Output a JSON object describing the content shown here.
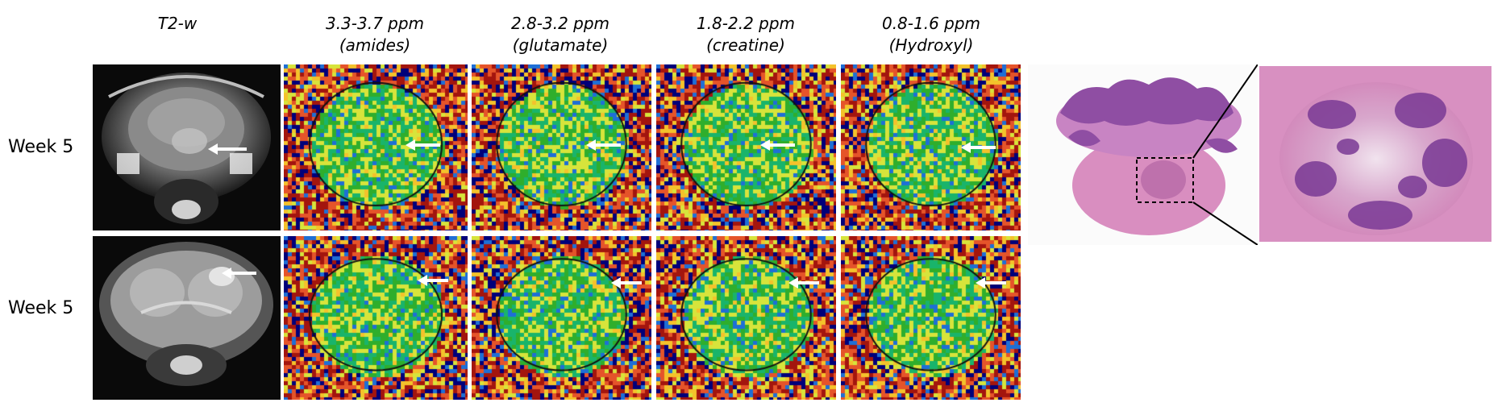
{
  "figure": {
    "columns": [
      {
        "line1": "T2-w",
        "line2": ""
      },
      {
        "line1": "3.3-3.7 ppm",
        "line2": "(amides)"
      },
      {
        "line1": "2.8-3.2 ppm",
        "line2": "(glutamate)"
      },
      {
        "line1": "1.8-2.2 ppm",
        "line2": "(creatine)"
      },
      {
        "line1": "0.8-1.6 ppm",
        "line2": "(Hydroxyl)"
      }
    ],
    "rows": [
      {
        "label": "Week 5"
      },
      {
        "label": "Week 5"
      }
    ]
  },
  "colors": {
    "colormap": [
      "#00007a",
      "#1e6fd6",
      "#19b46b",
      "#2fae2c",
      "#d7e43b",
      "#f4c22b",
      "#e5542a",
      "#a3150e"
    ],
    "he_pink": "#d58fbf",
    "he_purple": "#7d3d92"
  }
}
